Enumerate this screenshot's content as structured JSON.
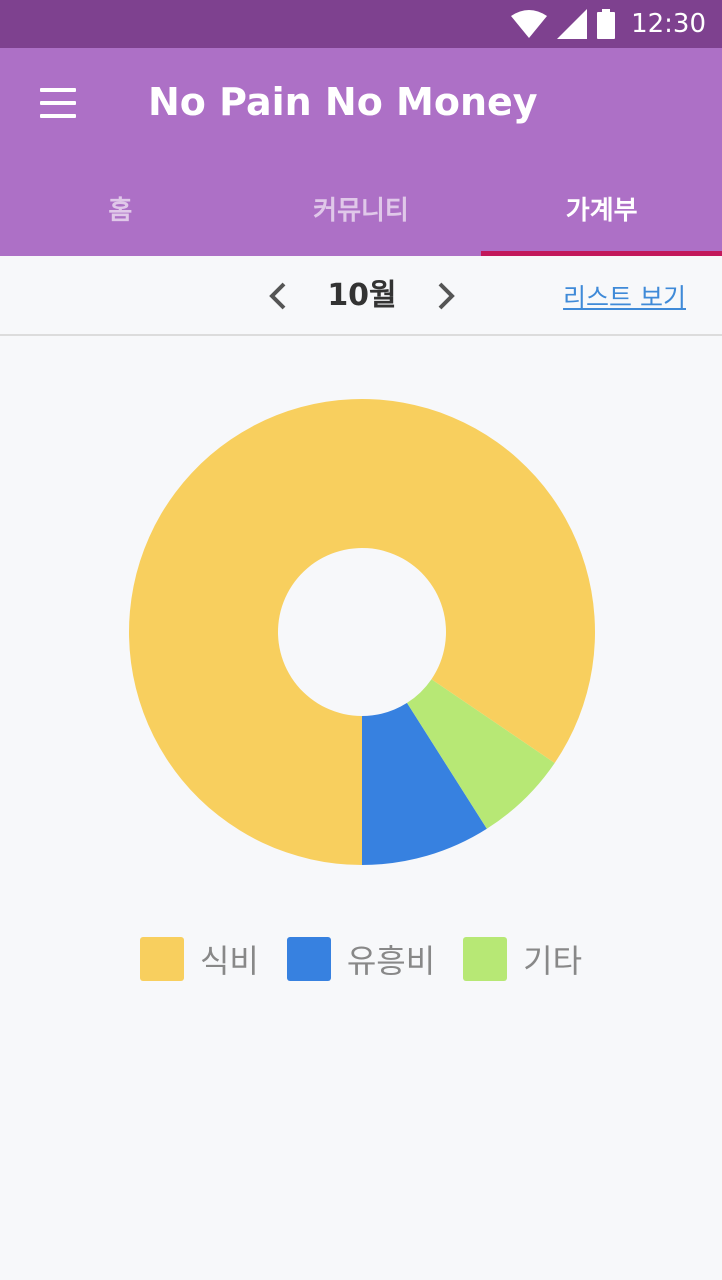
{
  "status_bar": {
    "time": "12:30",
    "icons": [
      "wifi-icon",
      "signal-icon",
      "battery-icon"
    ]
  },
  "app_bar": {
    "title": "No Pain No Money",
    "menu_icon": "hamburger-menu-icon",
    "tabs": [
      {
        "label": "홈",
        "active": false
      },
      {
        "label": "커뮤니티",
        "active": false
      },
      {
        "label": "가계부",
        "active": true
      }
    ]
  },
  "month_nav": {
    "month_label": "10월",
    "prev_icon": "chevron-left-icon",
    "next_icon": "chevron-right-icon",
    "list_link": "리스트 보기"
  },
  "colors": {
    "status_bar": "#7e418f",
    "app_bar": "#ad70c6",
    "tab_indicator": "#c2185b",
    "link": "#3f8ad8"
  },
  "chart_data": {
    "type": "pie",
    "donut": true,
    "categories": [
      "식비",
      "유흥비",
      "기타"
    ],
    "values": [
      84.5,
      9.0,
      6.5
    ],
    "colors": [
      "#f8cf5e",
      "#3781e0",
      "#b7e875"
    ],
    "legend_position": "bottom",
    "start": "clockwise from 6 o'clock: 유흥비, 기타, 식비"
  }
}
